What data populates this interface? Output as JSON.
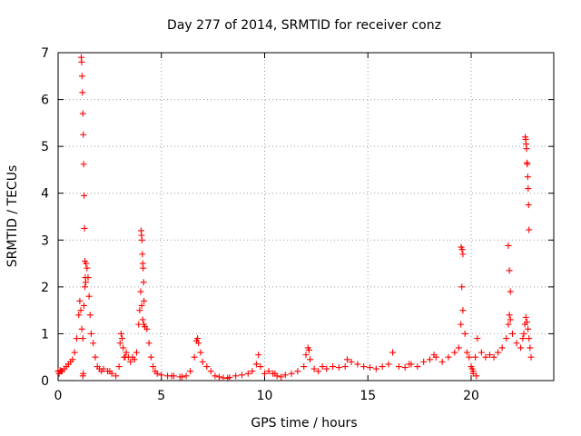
{
  "chart_data": {
    "type": "scatter",
    "title": "Day 277 of 2014, SRMTID for receiver conz",
    "xlabel": "GPS time / hours",
    "ylabel": "SRMTID / TECUs",
    "xlim": [
      0,
      24
    ],
    "ylim": [
      0,
      7
    ],
    "xticks": [
      0,
      5,
      10,
      15,
      20
    ],
    "yticks": [
      0,
      1,
      2,
      3,
      4,
      5,
      6,
      7
    ],
    "grid": true,
    "marker": "+",
    "series": [
      {
        "name": "SRMTID",
        "color": "#ff0000",
        "x": [
          0.0,
          0.1,
          0.2,
          0.3,
          0.4,
          0.5,
          0.6,
          0.7,
          0.8,
          0.9,
          1.0,
          1.05,
          1.1,
          1.15,
          1.2,
          1.25,
          1.3,
          1.35,
          1.4,
          1.45,
          1.5,
          1.55,
          1.6,
          1.7,
          1.8,
          1.9,
          2.0,
          2.1,
          2.2,
          2.4,
          2.6,
          2.8,
          2.95,
          3.0,
          3.05,
          3.1,
          3.15,
          3.2,
          3.3,
          3.4,
          3.5,
          3.6,
          3.7,
          3.8,
          3.9,
          3.95,
          4.0,
          4.05,
          4.1,
          4.15,
          4.2,
          4.3,
          4.4,
          4.5,
          4.6,
          4.7,
          4.8,
          5.0,
          5.3,
          5.6,
          5.9,
          6.2,
          6.4,
          6.6,
          6.7,
          6.75,
          6.8,
          6.9,
          7.0,
          7.2,
          7.4,
          7.6,
          7.8,
          8.0,
          8.3,
          8.6,
          8.9,
          9.2,
          9.4,
          9.6,
          9.7,
          9.8,
          10.0,
          10.2,
          10.4,
          10.6,
          10.8,
          11.0,
          11.3,
          11.6,
          11.9,
          12.0,
          12.1,
          12.2,
          12.4,
          12.6,
          12.8,
          13.0,
          13.3,
          13.6,
          13.9,
          14.2,
          14.5,
          14.8,
          15.1,
          15.4,
          15.7,
          16.0,
          16.2,
          16.5,
          16.8,
          17.1,
          17.4,
          17.7,
          18.0,
          18.3,
          18.6,
          18.9,
          19.2,
          19.4,
          19.5,
          19.55,
          19.6,
          19.7,
          19.8,
          19.9,
          20.0,
          20.1,
          20.2,
          20.3,
          20.5,
          20.7,
          20.9,
          21.1,
          21.3,
          21.5,
          21.7,
          21.8,
          21.85,
          21.9,
          22.0,
          22.2,
          22.4,
          22.5,
          22.55,
          22.6,
          22.65,
          22.7,
          22.75,
          22.8,
          22.85,
          22.9,
          1.12,
          1.14,
          1.16,
          1.18,
          1.2,
          1.22,
          1.24,
          1.26,
          1.28,
          1.3,
          1.32,
          1.34,
          4.02,
          4.04,
          4.06,
          4.08,
          4.1,
          4.12,
          4.14,
          4.16,
          22.62,
          22.64,
          22.66,
          22.68,
          22.7,
          22.72,
          22.74,
          22.76,
          22.78,
          22.8,
          19.52,
          19.56,
          19.6,
          21.8,
          21.85,
          21.9,
          1.2,
          1.22,
          20.05,
          20.1,
          20.25,
          0.05,
          0.15,
          2.5,
          3.25,
          5.5,
          6.0,
          8.2,
          10.5,
          12.15,
          14.0,
          17.0,
          18.2
        ],
        "y": [
          0.2,
          0.22,
          0.2,
          0.25,
          0.3,
          0.35,
          0.4,
          0.45,
          0.6,
          0.9,
          1.4,
          1.7,
          1.5,
          1.1,
          0.9,
          1.6,
          2.0,
          2.5,
          2.4,
          2.2,
          1.8,
          1.4,
          1.0,
          0.8,
          0.5,
          0.3,
          0.25,
          0.2,
          0.25,
          0.2,
          0.15,
          0.1,
          0.3,
          0.8,
          1.0,
          0.9,
          0.7,
          0.5,
          0.6,
          0.5,
          0.4,
          0.5,
          0.45,
          0.6,
          1.2,
          1.5,
          1.9,
          1.6,
          1.3,
          1.2,
          1.15,
          1.1,
          0.8,
          0.5,
          0.3,
          0.2,
          0.15,
          0.12,
          0.1,
          0.1,
          0.08,
          0.1,
          0.2,
          0.5,
          0.85,
          0.9,
          0.8,
          0.6,
          0.4,
          0.3,
          0.2,
          0.1,
          0.08,
          0.06,
          0.07,
          0.1,
          0.12,
          0.15,
          0.2,
          0.35,
          0.55,
          0.3,
          0.15,
          0.2,
          0.15,
          0.1,
          0.08,
          0.12,
          0.15,
          0.2,
          0.3,
          0.55,
          0.7,
          0.45,
          0.25,
          0.2,
          0.3,
          0.25,
          0.3,
          0.28,
          0.3,
          0.4,
          0.35,
          0.3,
          0.28,
          0.25,
          0.3,
          0.35,
          0.6,
          0.3,
          0.28,
          0.35,
          0.3,
          0.4,
          0.45,
          0.5,
          0.4,
          0.5,
          0.6,
          0.7,
          1.2,
          2.0,
          1.5,
          1.0,
          0.6,
          0.5,
          0.3,
          0.15,
          0.5,
          0.9,
          0.6,
          0.5,
          0.55,
          0.5,
          0.6,
          0.7,
          0.9,
          1.2,
          1.4,
          1.3,
          1.0,
          0.8,
          0.7,
          0.9,
          1.0,
          1.2,
          1.35,
          1.25,
          1.1,
          0.9,
          0.7,
          0.5,
          6.9,
          6.8,
          6.5,
          6.15,
          5.7,
          5.25,
          4.62,
          3.95,
          3.25,
          2.55,
          2.2,
          2.1,
          3.2,
          3.1,
          3.0,
          2.7,
          2.5,
          2.4,
          2.1,
          1.7,
          5.2,
          5.15,
          5.05,
          4.95,
          4.65,
          4.62,
          4.35,
          4.1,
          3.75,
          3.22,
          2.85,
          2.8,
          2.7,
          2.88,
          2.35,
          1.9,
          0.1,
          0.15,
          0.25,
          0.2,
          0.1,
          0.15,
          0.2,
          0.2,
          0.5,
          0.1,
          0.08,
          0.05,
          0.15,
          0.65,
          0.45,
          0.35,
          0.55
        ]
      }
    ]
  }
}
